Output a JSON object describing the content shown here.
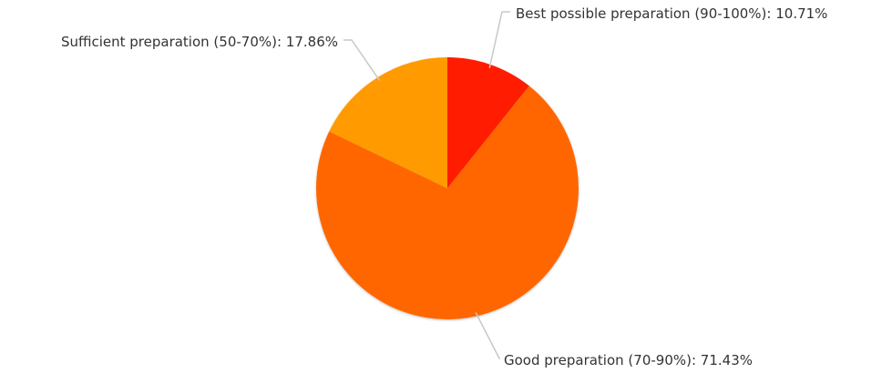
{
  "chart_data": {
    "type": "pie",
    "slices": [
      {
        "label": "Best possible preparation (90-100%)",
        "value": 10.71,
        "display": "Best possible preparation (90-100%): 10.71%",
        "color": "#ff1a00"
      },
      {
        "label": "Good preparation (70-90%)",
        "value": 71.43,
        "display": "Good preparation (70-90%): 71.43%",
        "color": "#ff6600"
      },
      {
        "label": "Sufficient preparation (50-70%)",
        "value": 17.86,
        "display": "Sufficient preparation (50-70%): 17.86%",
        "color": "#ff9a00"
      }
    ]
  }
}
